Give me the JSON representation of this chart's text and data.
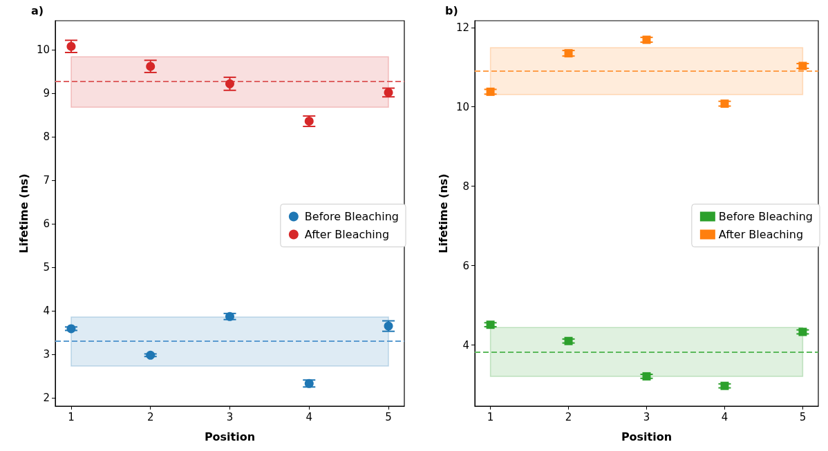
{
  "chart_data": [
    {
      "type": "scatter",
      "title": "a)",
      "xlabel": "Position",
      "ylabel": "Lifetime (ns)",
      "x": [
        1,
        2,
        3,
        4,
        5
      ],
      "xlim": [
        0.8,
        5.2
      ],
      "xticks": [
        1,
        2,
        3,
        4,
        5
      ],
      "ylim": [
        1.81,
        10.67
      ],
      "yticks": [
        2,
        3,
        4,
        5,
        6,
        7,
        8,
        9,
        10
      ],
      "marker": "circle",
      "legend": "right",
      "series": [
        {
          "name": "Before Bleaching",
          "color": "#1f77b4",
          "values": [
            3.59,
            2.98,
            3.87,
            2.33,
            3.65
          ],
          "errors": [
            0.04,
            0.03,
            0.07,
            0.08,
            0.12
          ]
        },
        {
          "name": "After Bleaching",
          "color": "#d62728",
          "values": [
            10.08,
            9.62,
            9.22,
            8.36,
            9.02
          ],
          "errors": [
            0.14,
            0.14,
            0.15,
            0.12,
            0.1
          ]
        }
      ],
      "ref_lines": [
        {
          "axis": "y",
          "value": 3.3,
          "color": "#5a9bd0",
          "line_style": "dashed"
        },
        {
          "axis": "y",
          "value": 9.27,
          "color": "#df6263",
          "line_style": "dashed"
        }
      ],
      "bands": [
        {
          "axis": "y",
          "from": 2.73,
          "to": 3.86,
          "color": "#1f77b4"
        },
        {
          "axis": "y",
          "from": 8.68,
          "to": 9.84,
          "color": "#d62728"
        }
      ]
    },
    {
      "type": "scatter",
      "title": "b)",
      "xlabel": "Position",
      "ylabel": "Lifetime (ns)",
      "x": [
        1,
        2,
        3,
        4,
        5
      ],
      "xlim": [
        0.8,
        5.2
      ],
      "xticks": [
        1,
        2,
        3,
        4,
        5
      ],
      "ylim": [
        2.46,
        12.17
      ],
      "yticks": [
        4,
        6,
        8,
        10,
        12
      ],
      "marker": "square",
      "legend": "right",
      "series": [
        {
          "name": "Before Bleaching",
          "color": "#2ca02c",
          "values": [
            4.51,
            4.1,
            3.21,
            2.97,
            4.33
          ],
          "errors": [
            0.05,
            0.05,
            0.05,
            0.05,
            0.05
          ]
        },
        {
          "name": "After Bleaching",
          "color": "#ff7f0e",
          "values": [
            10.38,
            11.35,
            11.69,
            10.08,
            11.03
          ],
          "errors": [
            0.06,
            0.07,
            0.06,
            0.06,
            0.06
          ]
        }
      ],
      "ref_lines": [
        {
          "axis": "y",
          "value": 3.83,
          "color": "#5bb95b",
          "line_style": "dashed"
        },
        {
          "axis": "y",
          "value": 10.9,
          "color": "#ff9f4a",
          "line_style": "dashed"
        }
      ],
      "bands": [
        {
          "axis": "y",
          "from": 3.21,
          "to": 4.44,
          "color": "#2ca02c"
        },
        {
          "axis": "y",
          "from": 10.31,
          "to": 11.49,
          "color": "#ff7f0e"
        }
      ]
    }
  ]
}
